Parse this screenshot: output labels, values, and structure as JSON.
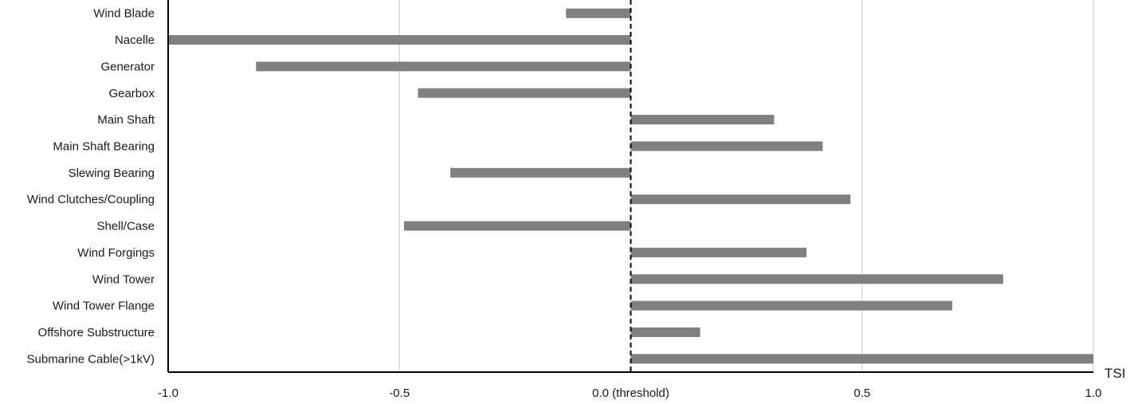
{
  "chart_data": {
    "type": "bar",
    "orientation": "horizontal",
    "categories": [
      "Wind Blade",
      "Nacelle",
      "Generator",
      "Gearbox",
      "Main Shaft",
      "Main Shaft Bearing",
      "Slewing Bearing",
      "Wind Clutches/Coupling",
      "Shell/Case",
      "Wind Forgings",
      "Wind Tower",
      "Wind Tower Flange",
      "Offshore Substructure",
      "Submarine Cable(>1kV)"
    ],
    "values": [
      -0.14,
      -1.0,
      -0.81,
      -0.46,
      0.31,
      0.415,
      -0.39,
      0.475,
      -0.49,
      0.38,
      0.805,
      0.695,
      0.15,
      1.0
    ],
    "xlabel": "TSI",
    "xlim": [
      -1.0,
      1.0
    ],
    "xticks": [
      -1.0,
      -0.5,
      0.0,
      0.5,
      1.0
    ],
    "xtick_labels": [
      "-1.0",
      "-0.5",
      "0.0 (threshold)",
      "0.5",
      "1.0"
    ],
    "threshold": 0.0,
    "threshold_style": "dashed",
    "grid": "vertical",
    "legend": "none",
    "colors": {
      "bar": "#808080",
      "grid": "#d9d9d9",
      "axis": "#000000",
      "text": "#1a1a1a"
    }
  }
}
